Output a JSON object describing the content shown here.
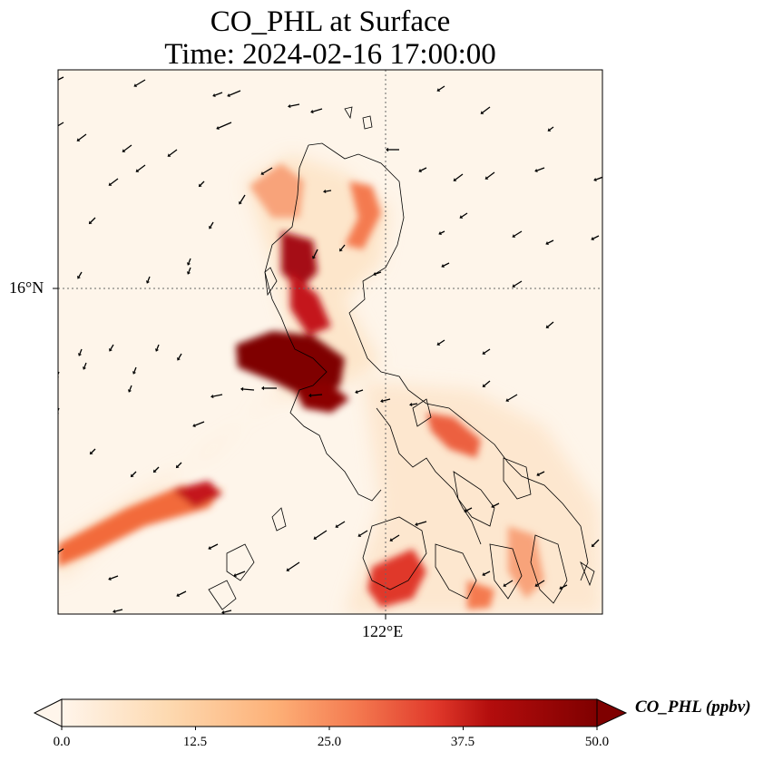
{
  "title": {
    "line1": "CO_PHL at Surface",
    "line2": "Time: 2024-02-16 17:00:00"
  },
  "axes": {
    "lat_label": "16°N",
    "lon_label": "122°E"
  },
  "colorbar": {
    "label": "CO_PHL (ppbv)",
    "ticks": [
      "0.0",
      "12.5",
      "25.0",
      "37.5",
      "50.0"
    ],
    "range": [
      0,
      50
    ],
    "extend": "both",
    "colors": [
      "#fff5eb",
      "#fdd0a2",
      "#fdae6b",
      "#f16913",
      "#d94801",
      "#a50f15",
      "#7f0000"
    ]
  },
  "map": {
    "gridlines": {
      "lat": "16°N",
      "lon": "122°E",
      "style": "dotted"
    },
    "plumes": [
      {
        "name": "north-luzon-west",
        "level": 30
      },
      {
        "name": "north-luzon-east-ring",
        "level": 28
      },
      {
        "name": "central-luzon-core",
        "level": 50
      },
      {
        "name": "manila-core",
        "level": 50
      },
      {
        "name": "sea-plume-southwest",
        "level": 42
      },
      {
        "name": "bicol-plume",
        "level": 38
      },
      {
        "name": "mindoro-south",
        "level": 40
      },
      {
        "name": "visayas-patches",
        "level": 30
      }
    ],
    "wind_vectors": "black arrows"
  }
}
